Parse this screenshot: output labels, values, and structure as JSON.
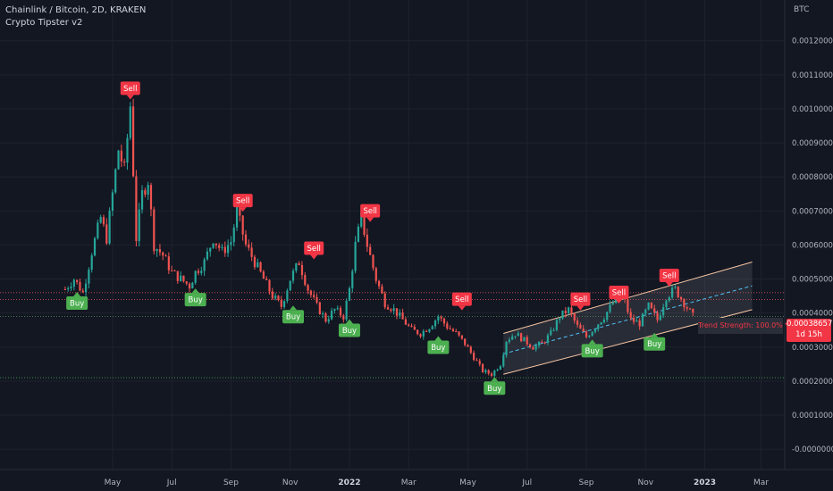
{
  "header": {
    "title": "Chainlink / Bitcoin, 2D, KRAKEN",
    "indicator": "Crypto Tipster v2",
    "currency": "BTC"
  },
  "price_tag": {
    "price": "0.00038657",
    "countdown": "1d 15h"
  },
  "trend_box": {
    "label": "Trend Strength: 100.0% ▼"
  },
  "colors": {
    "background": "#131722",
    "up": "#26a69a",
    "down": "#ef5350",
    "buy": "#4caf50",
    "sell": "#f23645",
    "grid": "#1e222d"
  },
  "chart_data": {
    "type": "candlestick",
    "symbol": "Chainlink / Bitcoin",
    "interval": "2D",
    "exchange": "KRAKEN",
    "yaxis": {
      "ticks": [
        "0.00120000",
        "0.00110000",
        "0.00100000",
        "0.00090000",
        "0.00080000",
        "0.00070000",
        "0.00060000",
        "0.00050000",
        "0.00040000",
        "0.00030000",
        "0.00020000",
        "0.00010000",
        "-0.00000000"
      ],
      "tick_values": [
        0.0012,
        0.0011,
        0.001,
        0.0009,
        0.0008,
        0.0007,
        0.0006,
        0.0005,
        0.0004,
        0.0003,
        0.0002,
        0.0001,
        0.0
      ],
      "ylim": [
        -6e-05,
        0.00132
      ]
    },
    "xaxis": {
      "range_months": [
        0,
        23
      ],
      "ticks": [
        {
          "label": "May",
          "m": 3.8
        },
        {
          "label": "Jul",
          "m": 5.8
        },
        {
          "label": "Sep",
          "m": 7.8
        },
        {
          "label": "Nov",
          "m": 9.8
        },
        {
          "label": "2022",
          "m": 11.8,
          "bold": true
        },
        {
          "label": "Mar",
          "m": 13.8
        },
        {
          "label": "May",
          "m": 15.8
        },
        {
          "label": "Jul",
          "m": 17.8
        },
        {
          "label": "Sep",
          "m": 19.8
        },
        {
          "label": "Nov",
          "m": 21.8
        },
        {
          "label": "2023",
          "m": 23.8,
          "bold": true
        },
        {
          "label": "Mar",
          "m": 25.7
        }
      ]
    },
    "price_path": [
      [
        2.2,
        0.00047
      ],
      [
        2.5,
        0.0005
      ],
      [
        2.8,
        0.00046
      ],
      [
        3.1,
        0.00058
      ],
      [
        3.4,
        0.00068
      ],
      [
        3.6,
        0.00062
      ],
      [
        3.8,
        0.00075
      ],
      [
        4.0,
        0.00088
      ],
      [
        4.2,
        0.00082
      ],
      [
        4.4,
        0.00101
      ],
      [
        4.6,
        0.00062
      ],
      [
        4.8,
        0.00075
      ],
      [
        5.0,
        0.00079
      ],
      [
        5.2,
        0.0006
      ],
      [
        5.5,
        0.00057
      ],
      [
        5.8,
        0.00052
      ],
      [
        6.1,
        0.0005
      ],
      [
        6.4,
        0.00048
      ],
      [
        6.6,
        0.00052
      ],
      [
        6.9,
        0.00055
      ],
      [
        7.2,
        0.00062
      ],
      [
        7.5,
        0.00058
      ],
      [
        7.8,
        0.00061
      ],
      [
        8.0,
        0.0007
      ],
      [
        8.3,
        0.0006
      ],
      [
        8.6,
        0.00055
      ],
      [
        8.9,
        0.0005
      ],
      [
        9.2,
        0.00045
      ],
      [
        9.5,
        0.00042
      ],
      [
        9.8,
        0.0005
      ],
      [
        10.1,
        0.00055
      ],
      [
        10.4,
        0.00047
      ],
      [
        10.7,
        0.00042
      ],
      [
        11.0,
        0.00038
      ],
      [
        11.3,
        0.00041
      ],
      [
        11.6,
        0.00039
      ],
      [
        11.8,
        0.00047
      ],
      [
        12.0,
        0.0006
      ],
      [
        12.2,
        0.00068
      ],
      [
        12.4,
        0.0006
      ],
      [
        12.7,
        0.0005
      ],
      [
        13.0,
        0.00043
      ],
      [
        13.3,
        0.00041
      ],
      [
        13.6,
        0.00038
      ],
      [
        13.9,
        0.00035
      ],
      [
        14.2,
        0.00034
      ],
      [
        14.5,
        0.00036
      ],
      [
        14.8,
        0.00039
      ],
      [
        15.1,
        0.00036
      ],
      [
        15.4,
        0.00034
      ],
      [
        15.7,
        0.00031
      ],
      [
        16.0,
        0.00027
      ],
      [
        16.3,
        0.00023
      ],
      [
        16.6,
        0.00022
      ],
      [
        16.9,
        0.00025
      ],
      [
        17.1,
        0.00032
      ],
      [
        17.4,
        0.00034
      ],
      [
        17.7,
        0.00032
      ],
      [
        18.0,
        0.0003
      ],
      [
        18.3,
        0.00031
      ],
      [
        18.6,
        0.00034
      ],
      [
        18.9,
        0.00039
      ],
      [
        19.2,
        0.00041
      ],
      [
        19.5,
        0.00036
      ],
      [
        19.8,
        0.00033
      ],
      [
        20.1,
        0.00036
      ],
      [
        20.4,
        0.00039
      ],
      [
        20.7,
        0.00043
      ],
      [
        21.0,
        0.00046
      ],
      [
        21.3,
        0.00038
      ],
      [
        21.6,
        0.00037
      ],
      [
        21.9,
        0.00042
      ],
      [
        22.2,
        0.00038
      ],
      [
        22.5,
        0.00045
      ],
      [
        22.8,
        0.00047
      ],
      [
        23.1,
        0.00043
      ],
      [
        23.4,
        0.00039
      ]
    ],
    "signals": [
      {
        "label": "Buy",
        "m": 2.6,
        "price": 0.00047,
        "side": "buy"
      },
      {
        "label": "Sell",
        "m": 4.4,
        "price": 0.00102,
        "side": "sell"
      },
      {
        "label": "Buy",
        "m": 6.6,
        "price": 0.00048,
        "side": "buy"
      },
      {
        "label": "Sell",
        "m": 8.2,
        "price": 0.00069,
        "side": "sell"
      },
      {
        "label": "Buy",
        "m": 9.9,
        "price": 0.00043,
        "side": "buy"
      },
      {
        "label": "Sell",
        "m": 10.6,
        "price": 0.00055,
        "side": "sell"
      },
      {
        "label": "Buy",
        "m": 11.8,
        "price": 0.00039,
        "side": "buy"
      },
      {
        "label": "Sell",
        "m": 12.5,
        "price": 0.00066,
        "side": "sell"
      },
      {
        "label": "Buy",
        "m": 14.8,
        "price": 0.00034,
        "side": "buy"
      },
      {
        "label": "Sell",
        "m": 15.6,
        "price": 0.0004,
        "side": "sell"
      },
      {
        "label": "Buy",
        "m": 16.7,
        "price": 0.00022,
        "side": "buy"
      },
      {
        "label": "Sell",
        "m": 19.6,
        "price": 0.0004,
        "side": "sell"
      },
      {
        "label": "Buy",
        "m": 20.0,
        "price": 0.00033,
        "side": "buy"
      },
      {
        "label": "Sell",
        "m": 20.9,
        "price": 0.00042,
        "side": "sell"
      },
      {
        "label": "Buy",
        "m": 22.1,
        "price": 0.00035,
        "side": "buy"
      },
      {
        "label": "Sell",
        "m": 22.6,
        "price": 0.00047,
        "side": "sell"
      }
    ],
    "horizontal_levels": [
      {
        "price": 0.00046,
        "color": "#ef5350"
      },
      {
        "price": 0.00044,
        "color": "#ef5350"
      },
      {
        "price": 0.00039,
        "color": "#4caf50"
      },
      {
        "price": 0.00021,
        "color": "#4caf50"
      }
    ],
    "regression_channel": {
      "start_m": 17.0,
      "end_m": 25.4,
      "upper": [
        0.00034,
        0.00055
      ],
      "middle": [
        0.00028,
        0.00048
      ],
      "lower": [
        0.00022,
        0.00041
      ]
    }
  }
}
